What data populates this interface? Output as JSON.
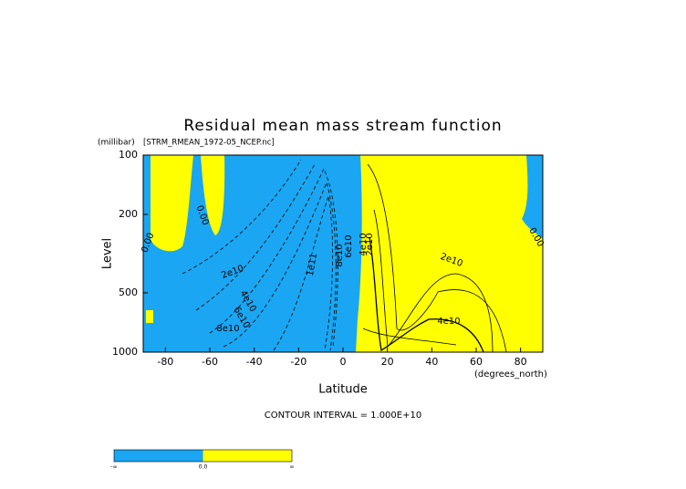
{
  "chart_data": {
    "type": "contour",
    "title": "Residual mean mass stream function",
    "subtitle": "[STRM_RMEAN_1972-05_NCEP.nc]",
    "y_unit": "(millibar)",
    "x_unit": "(degrees_north)",
    "xlabel": "Latitude",
    "ylabel": "Level",
    "xlim": [
      -90,
      90
    ],
    "ylim": [
      1000,
      100
    ],
    "log_y": true,
    "xticks": [
      -80,
      -60,
      -40,
      -20,
      0,
      20,
      40,
      60,
      80
    ],
    "yticks": [
      100,
      200,
      500,
      1000
    ],
    "note": "CONTOUR INTERVAL = 1.000E+10",
    "contour_labels": [
      "0.00",
      "0.00",
      "0.00",
      "2e10",
      "4e10",
      "6e10",
      "8e10",
      "1e11",
      "8e10",
      "6e10",
      "4e10",
      "2e10",
      "2e10",
      "4e10"
    ],
    "negative_color": "#1aa6f2",
    "positive_color": "#ffff00",
    "colorbar_labels": [
      "-∞",
      "0.0",
      "∞"
    ]
  }
}
